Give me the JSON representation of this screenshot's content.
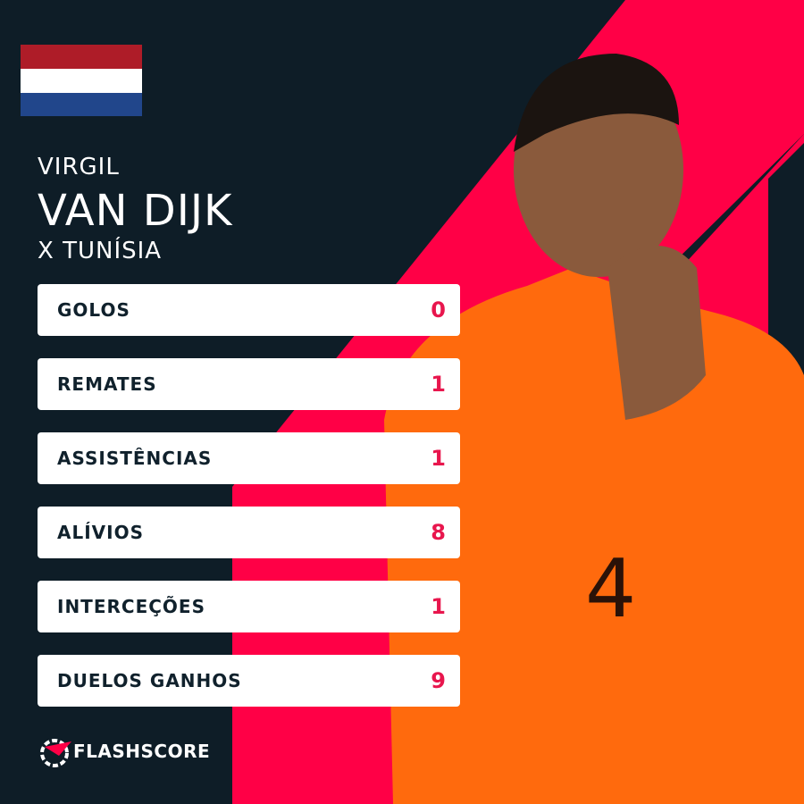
{
  "header": {
    "first_name": "VIRGIL",
    "last_name": "VAN DIJK",
    "opponent": "X TUNÍSIA"
  },
  "stats": [
    {
      "label": "GOLOS",
      "value": 0
    },
    {
      "label": "REMATES",
      "value": 1
    },
    {
      "label": "ASSISTÊNCIAS",
      "value": 1
    },
    {
      "label": "ALÍVIOS",
      "value": 8
    },
    {
      "label": "INTERCEÇÕES",
      "value": 1
    },
    {
      "label": "DUELOS GANHOS",
      "value": 9
    }
  ],
  "brand": "FLASHSCORE"
}
